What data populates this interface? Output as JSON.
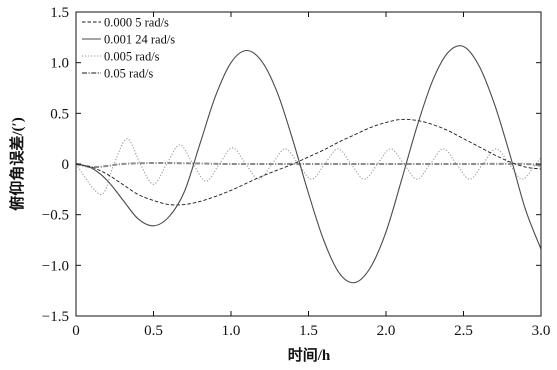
{
  "chart_data": {
    "type": "line",
    "xlabel": "时间/h",
    "ylabel": "俯仰角误差/(′)",
    "xlim": [
      0,
      3
    ],
    "ylim": [
      -1.5,
      1.5
    ],
    "x_ticks": {
      "values": [
        0,
        0.5,
        1,
        1.5,
        2,
        2.5,
        3
      ],
      "labels": [
        "0",
        "0.5",
        "1.0",
        "1.5",
        "2.0",
        "2.5",
        "3.0"
      ]
    },
    "y_ticks": {
      "values": [
        1.5,
        1,
        0.5,
        0,
        -0.5,
        -1,
        -1.5
      ],
      "labels": [
        "1.5",
        "1.0",
        "0.5",
        "0",
        "−0.5",
        "−1.0",
        "−1.5"
      ]
    },
    "grid": false,
    "legend_position": "top-left",
    "series": [
      {
        "name": "0.000 5 rad/s",
        "line_style": "dashed",
        "color": "#1a1a1a",
        "points": [
          [
            0,
            0
          ],
          [
            0.1,
            -0.03
          ],
          [
            0.2,
            -0.1
          ],
          [
            0.3,
            -0.2
          ],
          [
            0.4,
            -0.3
          ],
          [
            0.5,
            -0.36
          ],
          [
            0.6,
            -0.4
          ],
          [
            0.7,
            -0.4
          ],
          [
            0.8,
            -0.37
          ],
          [
            0.9,
            -0.32
          ],
          [
            1.0,
            -0.26
          ],
          [
            1.1,
            -0.19
          ],
          [
            1.2,
            -0.12
          ],
          [
            1.3,
            -0.06
          ],
          [
            1.4,
            0.0
          ],
          [
            1.5,
            0.07
          ],
          [
            1.6,
            0.14
          ],
          [
            1.7,
            0.22
          ],
          [
            1.8,
            0.29
          ],
          [
            1.9,
            0.36
          ],
          [
            2.0,
            0.41
          ],
          [
            2.1,
            0.44
          ],
          [
            2.2,
            0.43
          ],
          [
            2.3,
            0.39
          ],
          [
            2.4,
            0.33
          ],
          [
            2.5,
            0.25
          ],
          [
            2.6,
            0.17
          ],
          [
            2.7,
            0.09
          ],
          [
            2.8,
            0.02
          ],
          [
            2.9,
            -0.03
          ],
          [
            3.0,
            -0.05
          ]
        ]
      },
      {
        "name": "0.001 24 rad/s",
        "line_style": "solid",
        "color": "#4a4a4a",
        "points": [
          [
            0,
            0
          ],
          [
            0.1,
            -0.04
          ],
          [
            0.2,
            -0.16
          ],
          [
            0.3,
            -0.35
          ],
          [
            0.4,
            -0.54
          ],
          [
            0.5,
            -0.61
          ],
          [
            0.6,
            -0.52
          ],
          [
            0.7,
            -0.27
          ],
          [
            0.8,
            0.2
          ],
          [
            0.9,
            0.67
          ],
          [
            1.0,
            1.0
          ],
          [
            1.1,
            1.12
          ],
          [
            1.2,
            1.01
          ],
          [
            1.3,
            0.7
          ],
          [
            1.4,
            0.23
          ],
          [
            1.5,
            -0.29
          ],
          [
            1.6,
            -0.76
          ],
          [
            1.7,
            -1.08
          ],
          [
            1.8,
            -1.17
          ],
          [
            1.9,
            -1.02
          ],
          [
            2.0,
            -0.67
          ],
          [
            2.1,
            -0.16
          ],
          [
            2.2,
            0.37
          ],
          [
            2.3,
            0.82
          ],
          [
            2.4,
            1.1
          ],
          [
            2.5,
            1.16
          ],
          [
            2.6,
            0.97
          ],
          [
            2.7,
            0.59
          ],
          [
            2.8,
            0.09
          ],
          [
            2.9,
            -0.45
          ],
          [
            3.0,
            -0.84
          ]
        ]
      },
      {
        "name": "0.005 rad/s",
        "line_style": "dotted",
        "color": "#9a9a9a",
        "points": [
          [
            0,
            0
          ],
          [
            0.16,
            -0.3
          ],
          [
            0.245,
            0
          ],
          [
            0.33,
            0.25
          ],
          [
            0.415,
            0
          ],
          [
            0.5,
            -0.2
          ],
          [
            0.585,
            0
          ],
          [
            0.67,
            0.19
          ],
          [
            0.755,
            0
          ],
          [
            0.84,
            -0.17
          ],
          [
            0.925,
            0
          ],
          [
            1.01,
            0.16
          ],
          [
            1.095,
            0
          ],
          [
            1.18,
            -0.15
          ],
          [
            1.265,
            0
          ],
          [
            1.35,
            0.15
          ],
          [
            1.435,
            0
          ],
          [
            1.52,
            -0.15
          ],
          [
            1.605,
            0
          ],
          [
            1.69,
            0.15
          ],
          [
            1.775,
            0
          ],
          [
            1.86,
            -0.15
          ],
          [
            1.945,
            0
          ],
          [
            2.03,
            0.15
          ],
          [
            2.115,
            0
          ],
          [
            2.2,
            -0.15
          ],
          [
            2.285,
            0
          ],
          [
            2.37,
            0.15
          ],
          [
            2.455,
            0
          ],
          [
            2.54,
            -0.15
          ],
          [
            2.625,
            0
          ],
          [
            2.71,
            0.15
          ],
          [
            2.795,
            0
          ],
          [
            2.88,
            -0.15
          ],
          [
            2.965,
            0
          ],
          [
            3.0,
            0.06
          ]
        ]
      },
      {
        "name": "0.05 rad/s",
        "line_style": "dash-dot",
        "color": "#8c8c8c",
        "points": [
          [
            0,
            0
          ],
          [
            0.1,
            -0.03
          ],
          [
            0.2,
            -0.02
          ],
          [
            0.3,
            0.0
          ],
          [
            0.5,
            0.01
          ],
          [
            0.8,
            0.005
          ],
          [
            1.0,
            0.0
          ],
          [
            1.5,
            0.0
          ],
          [
            2.0,
            0.0
          ],
          [
            2.5,
            0.0
          ],
          [
            2.9,
            0.0
          ],
          [
            3.0,
            -0.02
          ]
        ]
      }
    ]
  }
}
